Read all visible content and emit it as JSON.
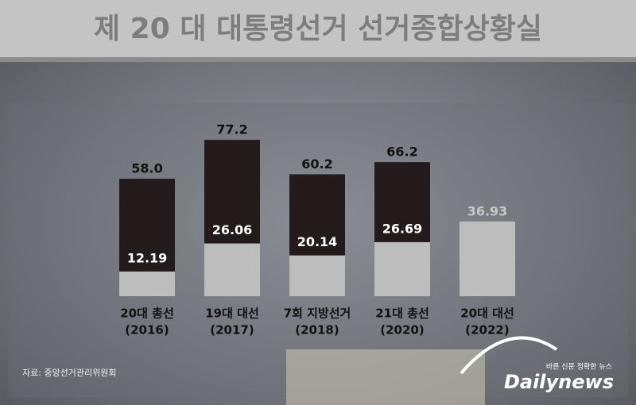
{
  "banner": "제 20 대 대통령선거 선거종합상황실",
  "chart_data": {
    "type": "bar",
    "categories": [
      [
        "20대 총선",
        "(2016)"
      ],
      [
        "19대 대선",
        "(2017)"
      ],
      [
        "7회 지방선거",
        "(2018)"
      ],
      [
        "21대 총선",
        "(2020)"
      ],
      [
        "20대 대선",
        "(2022)"
      ]
    ],
    "series": [
      {
        "color": "#231a1b",
        "values": [
          58.0,
          77.2,
          60.2,
          66.2,
          null
        ],
        "value_labels": [
          "58.0",
          "77.2",
          "60.2",
          "66.2",
          null
        ]
      },
      {
        "color": "#bdbdbd",
        "values": [
          12.19,
          26.06,
          20.14,
          26.69,
          36.93
        ]
      }
    ],
    "source": "자료: 중앙선거관리위원회"
  },
  "logo": {
    "slogan": "바른 신문 정확한 뉴스",
    "name": "Dailynews"
  }
}
